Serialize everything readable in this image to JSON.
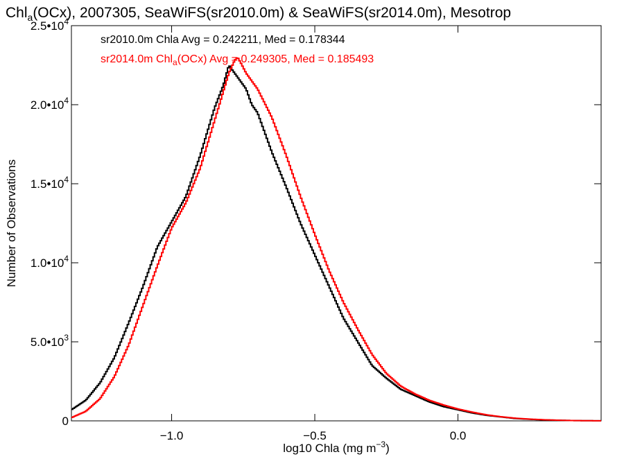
{
  "chart_data": {
    "type": "line",
    "title_parts": {
      "before_sub": "Chl",
      "sub": "a",
      "after_sub": "(OCx), 2007305, SeaWiFS(sr2010.0m) & SeaWiFS(sr2014.0m), Mesotrop"
    },
    "xlabel": {
      "main": "log10 Chla (mg m",
      "sup": "−3",
      "end": ")"
    },
    "ylabel": "Number of Observations",
    "xlim": [
      -1.35,
      0.5
    ],
    "ylim": [
      0,
      25000
    ],
    "x_ticks": [
      {
        "value": -1.0,
        "label": "−1.0"
      },
      {
        "value": -0.5,
        "label": "−0.5"
      },
      {
        "value": 0.0,
        "label": "0.0"
      }
    ],
    "y_ticks": [
      {
        "value": 0,
        "mant": "0",
        "exp": ""
      },
      {
        "value": 5000,
        "mant": "5.0•10",
        "exp": "3"
      },
      {
        "value": 10000,
        "mant": "1.0•10",
        "exp": "4"
      },
      {
        "value": 15000,
        "mant": "1.5•10",
        "exp": "4"
      },
      {
        "value": 20000,
        "mant": "2.0•10",
        "exp": "4"
      },
      {
        "value": 25000,
        "mant": "2.5•10",
        "exp": "4"
      }
    ],
    "series": [
      {
        "label_parts": {
          "before_sub": "sr2010.0m Chla Avg = 0.242211, Med = 0.178344",
          "sub": "",
          "after_sub": ""
        },
        "color": "#000000",
        "x": [
          -1.35,
          -1.3,
          -1.25,
          -1.2,
          -1.15,
          -1.1,
          -1.05,
          -1.0,
          -0.95,
          -0.9,
          -0.85,
          -0.82,
          -0.8,
          -0.78,
          -0.76,
          -0.74,
          -0.72,
          -0.7,
          -0.65,
          -0.6,
          -0.55,
          -0.5,
          -0.45,
          -0.4,
          -0.35,
          -0.3,
          -0.25,
          -0.2,
          -0.15,
          -0.1,
          -0.05,
          0.0,
          0.05,
          0.1,
          0.15,
          0.2,
          0.25,
          0.3,
          0.35,
          0.4,
          0.45,
          0.5
        ],
        "y": [
          700,
          1300,
          2400,
          4000,
          6200,
          8500,
          11000,
          12600,
          14200,
          16800,
          19800,
          21200,
          22500,
          22000,
          21500,
          21000,
          20000,
          19500,
          17000,
          14800,
          12500,
          10500,
          8500,
          6500,
          5000,
          3500,
          2700,
          2000,
          1600,
          1200,
          900,
          700,
          500,
          350,
          250,
          150,
          100,
          60,
          40,
          20,
          10,
          5
        ]
      },
      {
        "label_parts": {
          "before_sub": "sr2014.0m Chl",
          "sub": "a",
          "after_sub": "(OCx) Avg = 0.249305, Med = 0.185493"
        },
        "color": "#ff0000",
        "x": [
          -1.35,
          -1.3,
          -1.25,
          -1.2,
          -1.15,
          -1.1,
          -1.05,
          -1.0,
          -0.95,
          -0.9,
          -0.85,
          -0.82,
          -0.8,
          -0.78,
          -0.77,
          -0.76,
          -0.74,
          -0.72,
          -0.7,
          -0.65,
          -0.6,
          -0.55,
          -0.5,
          -0.45,
          -0.4,
          -0.35,
          -0.3,
          -0.25,
          -0.2,
          -0.15,
          -0.1,
          -0.05,
          0.0,
          0.05,
          0.1,
          0.15,
          0.2,
          0.25,
          0.3,
          0.35,
          0.4,
          0.45,
          0.5
        ],
        "y": [
          200,
          600,
          1400,
          2800,
          4800,
          7300,
          9800,
          12200,
          13800,
          16000,
          19000,
          20800,
          22000,
          22800,
          23000,
          22700,
          22000,
          21500,
          21000,
          19200,
          16800,
          14200,
          11800,
          9500,
          7500,
          5800,
          4200,
          3000,
          2200,
          1700,
          1300,
          1000,
          750,
          550,
          380,
          260,
          170,
          110,
          70,
          40,
          20,
          10,
          5
        ]
      }
    ],
    "legend_placement": "top-left",
    "grid": false
  }
}
